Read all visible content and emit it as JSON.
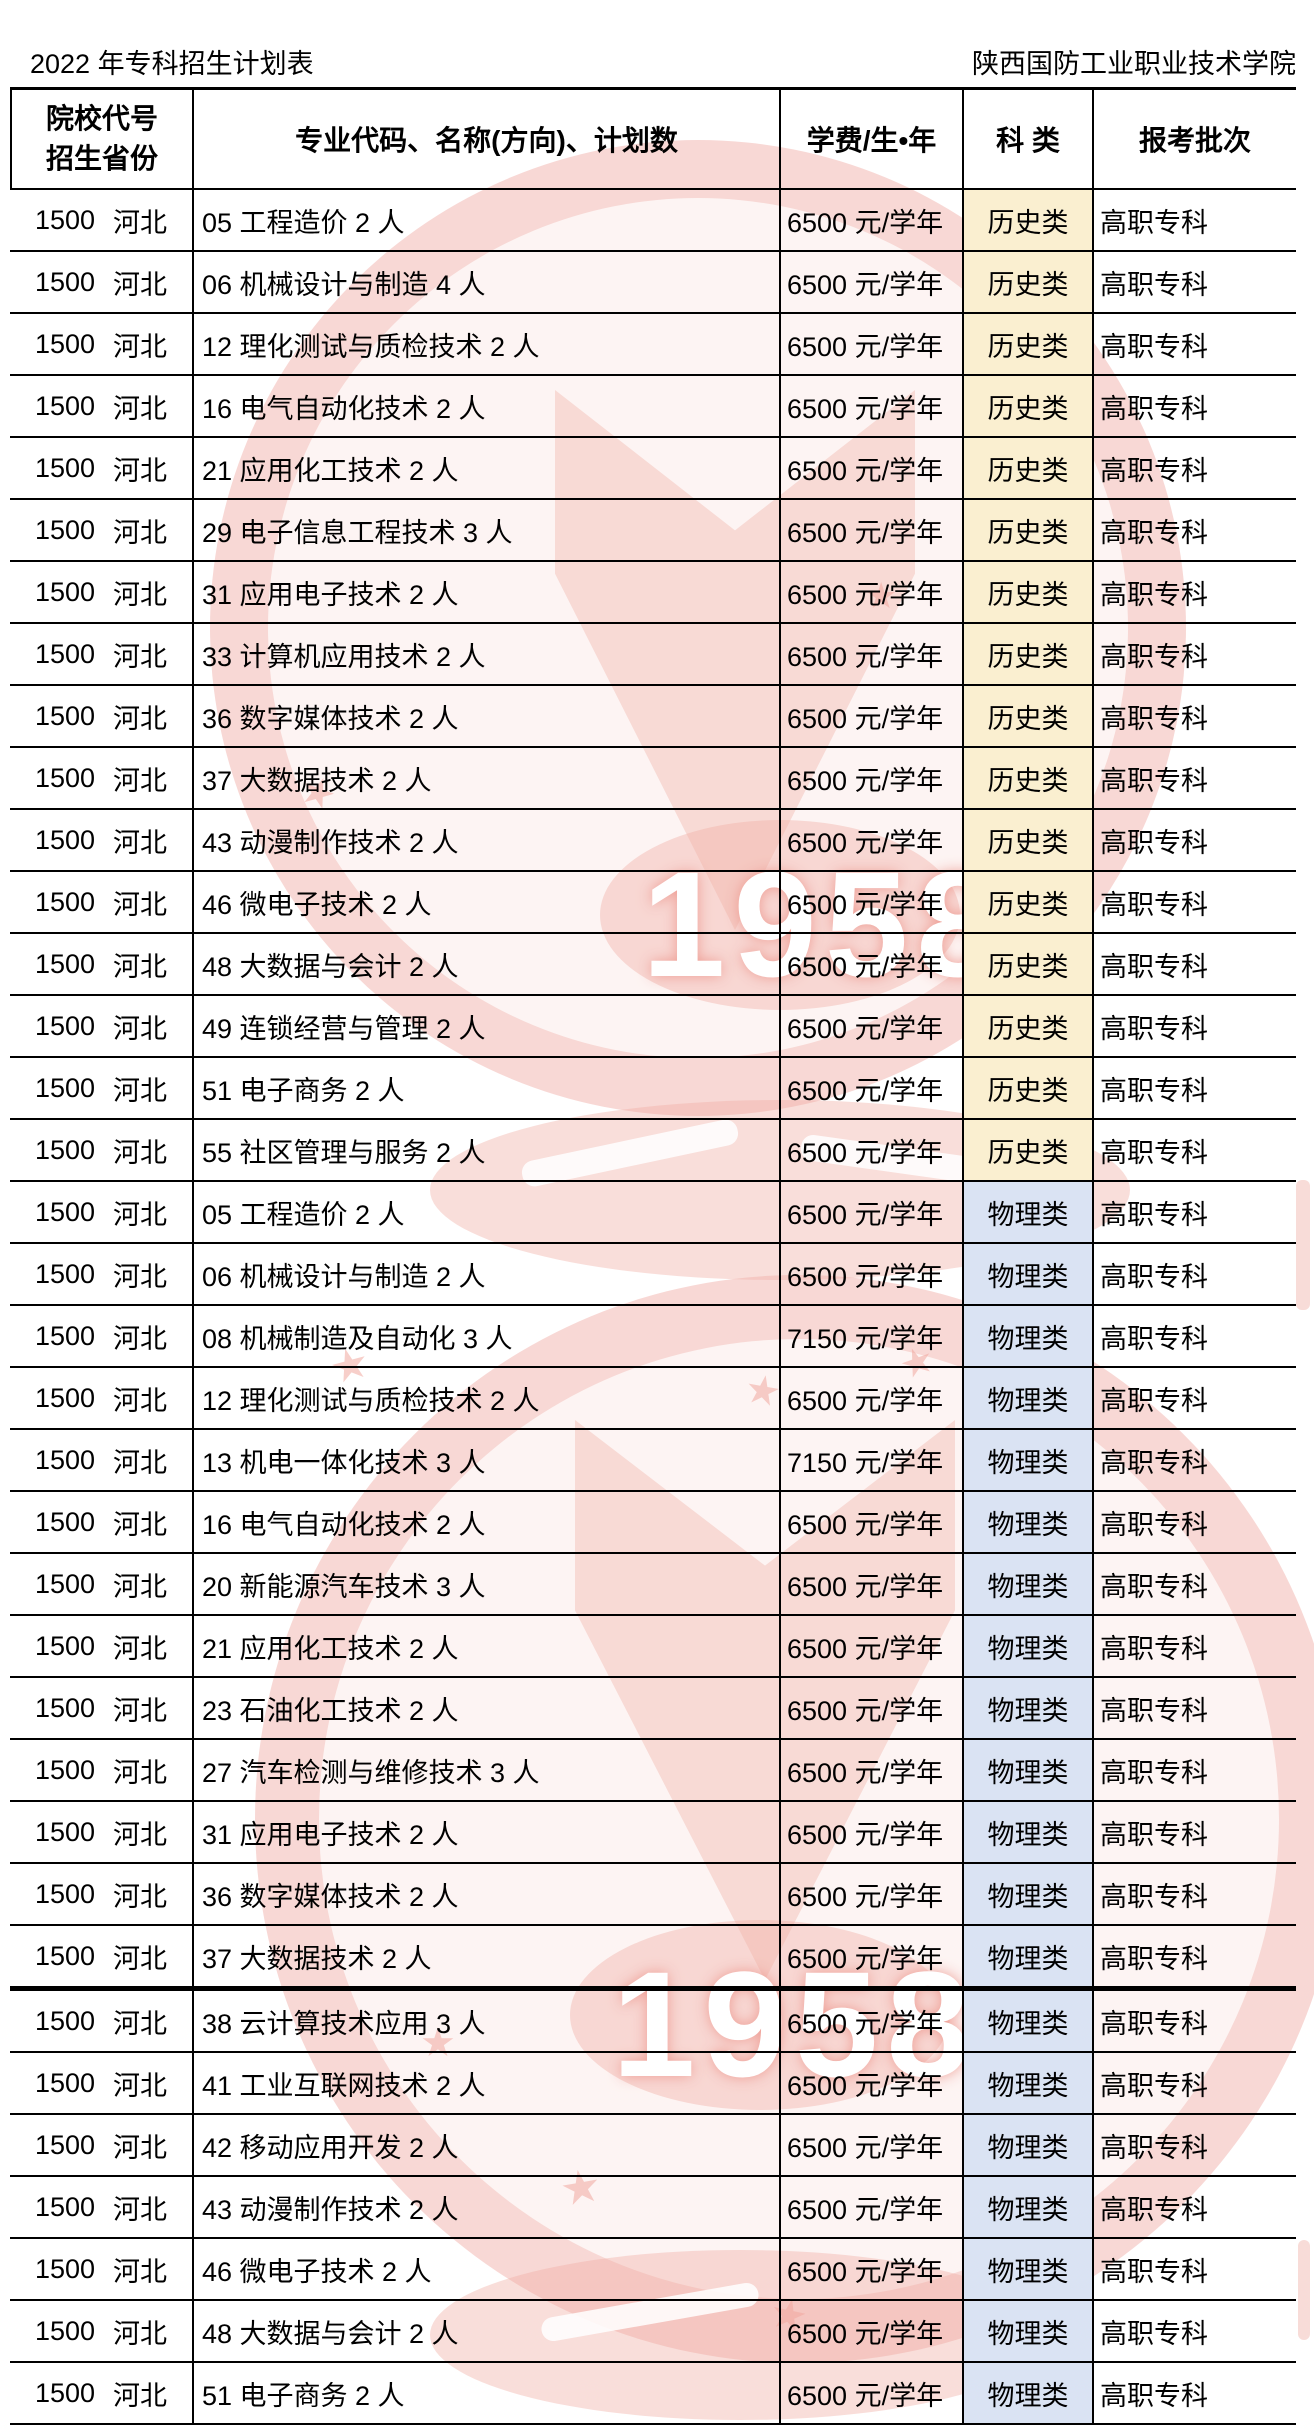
{
  "page": {
    "title_left": "2022 年专科招生计划表",
    "title_right": "陕西国防工业职业技术学院"
  },
  "table": {
    "headers": {
      "col1_line1": "院校代号",
      "col1_line2": "招生省份",
      "col2": "专业代码、名称(方向)、计划数",
      "col3": "学费/生•年",
      "col4": "科 类",
      "col5": "报考批次"
    },
    "category_styles": {
      "历史类": "#faefd0",
      "物理类": "#dae3f3"
    },
    "rows": [
      {
        "code": "1500",
        "province": "河北",
        "major": "05 工程造价 2 人",
        "fee": "6500 元/学年",
        "category": "历史类",
        "batch": "高职专科",
        "thick_top": false
      },
      {
        "code": "1500",
        "province": "河北",
        "major": "06 机械设计与制造 4 人",
        "fee": "6500 元/学年",
        "category": "历史类",
        "batch": "高职专科",
        "thick_top": false
      },
      {
        "code": "1500",
        "province": "河北",
        "major": "12 理化测试与质检技术 2 人",
        "fee": "6500 元/学年",
        "category": "历史类",
        "batch": "高职专科",
        "thick_top": false
      },
      {
        "code": "1500",
        "province": "河北",
        "major": "16 电气自动化技术 2 人",
        "fee": "6500 元/学年",
        "category": "历史类",
        "batch": "高职专科",
        "thick_top": false
      },
      {
        "code": "1500",
        "province": "河北",
        "major": "21 应用化工技术 2 人",
        "fee": "6500 元/学年",
        "category": "历史类",
        "batch": "高职专科",
        "thick_top": false
      },
      {
        "code": "1500",
        "province": "河北",
        "major": "29 电子信息工程技术 3 人",
        "fee": "6500 元/学年",
        "category": "历史类",
        "batch": "高职专科",
        "thick_top": false
      },
      {
        "code": "1500",
        "province": "河北",
        "major": "31 应用电子技术 2 人",
        "fee": "6500 元/学年",
        "category": "历史类",
        "batch": "高职专科",
        "thick_top": false
      },
      {
        "code": "1500",
        "province": "河北",
        "major": "33 计算机应用技术 2 人",
        "fee": "6500 元/学年",
        "category": "历史类",
        "batch": "高职专科",
        "thick_top": false
      },
      {
        "code": "1500",
        "province": "河北",
        "major": "36 数字媒体技术 2 人",
        "fee": "6500 元/学年",
        "category": "历史类",
        "batch": "高职专科",
        "thick_top": false
      },
      {
        "code": "1500",
        "province": "河北",
        "major": "37 大数据技术 2 人",
        "fee": "6500 元/学年",
        "category": "历史类",
        "batch": "高职专科",
        "thick_top": false
      },
      {
        "code": "1500",
        "province": "河北",
        "major": "43 动漫制作技术 2 人",
        "fee": "6500 元/学年",
        "category": "历史类",
        "batch": "高职专科",
        "thick_top": false
      },
      {
        "code": "1500",
        "province": "河北",
        "major": "46 微电子技术 2 人",
        "fee": "6500 元/学年",
        "category": "历史类",
        "batch": "高职专科",
        "thick_top": false
      },
      {
        "code": "1500",
        "province": "河北",
        "major": "48 大数据与会计 2 人",
        "fee": "6500 元/学年",
        "category": "历史类",
        "batch": "高职专科",
        "thick_top": false
      },
      {
        "code": "1500",
        "province": "河北",
        "major": "49 连锁经营与管理 2 人",
        "fee": "6500 元/学年",
        "category": "历史类",
        "batch": "高职专科",
        "thick_top": false
      },
      {
        "code": "1500",
        "province": "河北",
        "major": "51 电子商务 2 人",
        "fee": "6500 元/学年",
        "category": "历史类",
        "batch": "高职专科",
        "thick_top": false
      },
      {
        "code": "1500",
        "province": "河北",
        "major": "55 社区管理与服务 2 人",
        "fee": "6500 元/学年",
        "category": "历史类",
        "batch": "高职专科",
        "thick_top": false
      },
      {
        "code": "1500",
        "province": "河北",
        "major": "05 工程造价 2 人",
        "fee": "6500 元/学年",
        "category": "物理类",
        "batch": "高职专科",
        "thick_top": false
      },
      {
        "code": "1500",
        "province": "河北",
        "major": "06 机械设计与制造 2 人",
        "fee": "6500 元/学年",
        "category": "物理类",
        "batch": "高职专科",
        "thick_top": false
      },
      {
        "code": "1500",
        "province": "河北",
        "major": "08 机械制造及自动化 3 人",
        "fee": "7150 元/学年",
        "category": "物理类",
        "batch": "高职专科",
        "thick_top": false
      },
      {
        "code": "1500",
        "province": "河北",
        "major": "12 理化测试与质检技术 2 人",
        "fee": "6500 元/学年",
        "category": "物理类",
        "batch": "高职专科",
        "thick_top": false
      },
      {
        "code": "1500",
        "province": "河北",
        "major": "13 机电一体化技术 3 人",
        "fee": "7150 元/学年",
        "category": "物理类",
        "batch": "高职专科",
        "thick_top": false
      },
      {
        "code": "1500",
        "province": "河北",
        "major": "16 电气自动化技术 2 人",
        "fee": "6500 元/学年",
        "category": "物理类",
        "batch": "高职专科",
        "thick_top": false
      },
      {
        "code": "1500",
        "province": "河北",
        "major": "20 新能源汽车技术 3 人",
        "fee": "6500 元/学年",
        "category": "物理类",
        "batch": "高职专科",
        "thick_top": false
      },
      {
        "code": "1500",
        "province": "河北",
        "major": "21 应用化工技术 2 人",
        "fee": "6500 元/学年",
        "category": "物理类",
        "batch": "高职专科",
        "thick_top": false
      },
      {
        "code": "1500",
        "province": "河北",
        "major": "23 石油化工技术 2 人",
        "fee": "6500 元/学年",
        "category": "物理类",
        "batch": "高职专科",
        "thick_top": false
      },
      {
        "code": "1500",
        "province": "河北",
        "major": "27 汽车检测与维修技术 3 人",
        "fee": "6500 元/学年",
        "category": "物理类",
        "batch": "高职专科",
        "thick_top": false
      },
      {
        "code": "1500",
        "province": "河北",
        "major": "31 应用电子技术 2 人",
        "fee": "6500 元/学年",
        "category": "物理类",
        "batch": "高职专科",
        "thick_top": false
      },
      {
        "code": "1500",
        "province": "河北",
        "major": "36 数字媒体技术 2 人",
        "fee": "6500 元/学年",
        "category": "物理类",
        "batch": "高职专科",
        "thick_top": false
      },
      {
        "code": "1500",
        "province": "河北",
        "major": "37 大数据技术 2 人",
        "fee": "6500 元/学年",
        "category": "物理类",
        "batch": "高职专科",
        "thick_top": false
      },
      {
        "code": "1500",
        "province": "河北",
        "major": "38 云计算技术应用 3 人",
        "fee": "6500 元/学年",
        "category": "物理类",
        "batch": "高职专科",
        "thick_top": true
      },
      {
        "code": "1500",
        "province": "河北",
        "major": "41 工业互联网技术 2 人",
        "fee": "6500 元/学年",
        "category": "物理类",
        "batch": "高职专科",
        "thick_top": false
      },
      {
        "code": "1500",
        "province": "河北",
        "major": "42 移动应用开发 2 人",
        "fee": "6500 元/学年",
        "category": "物理类",
        "batch": "高职专科",
        "thick_top": false
      },
      {
        "code": "1500",
        "province": "河北",
        "major": "43 动漫制作技术 2 人",
        "fee": "6500 元/学年",
        "category": "物理类",
        "batch": "高职专科",
        "thick_top": false
      },
      {
        "code": "1500",
        "province": "河北",
        "major": "46 微电子技术 2 人",
        "fee": "6500 元/学年",
        "category": "物理类",
        "batch": "高职专科",
        "thick_top": false
      },
      {
        "code": "1500",
        "province": "河北",
        "major": "48 大数据与会计 2 人",
        "fee": "6500 元/学年",
        "category": "物理类",
        "batch": "高职专科",
        "thick_top": false
      },
      {
        "code": "1500",
        "province": "河北",
        "major": "51 电子商务 2 人",
        "fee": "6500 元/学年",
        "category": "物理类",
        "batch": "高职专科",
        "thick_top": false
      }
    ]
  },
  "watermark": {
    "year_text": "1958",
    "star_glyph": "★"
  }
}
